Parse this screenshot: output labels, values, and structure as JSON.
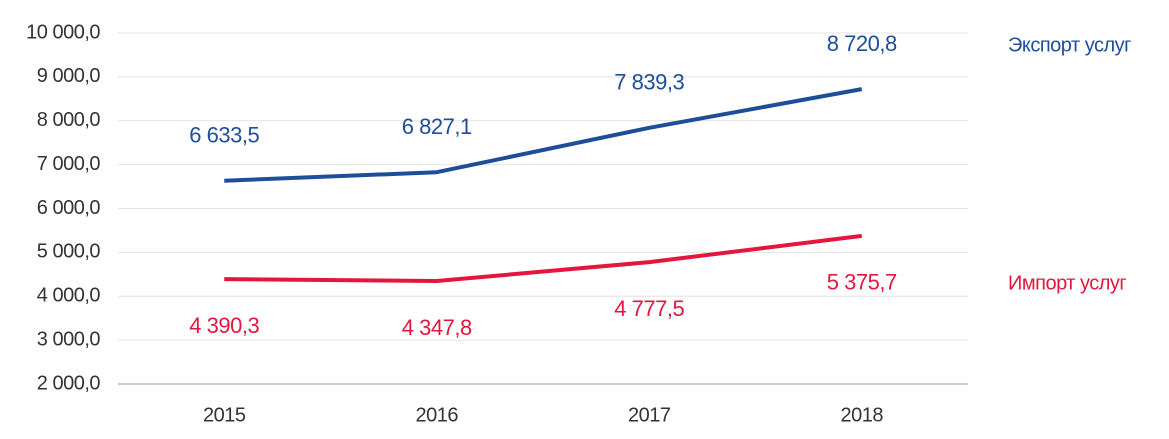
{
  "chart_data": {
    "type": "line",
    "categories": [
      "2015",
      "2016",
      "2017",
      "2018"
    ],
    "series": [
      {
        "name": "Экспорт услуг",
        "color": "#1f4e99",
        "values": [
          6633.5,
          6827.1,
          7839.3,
          8720.8
        ],
        "value_labels": [
          "6 633,5",
          "6 827,1",
          "7 839,3",
          "8 720,8"
        ]
      },
      {
        "name": "Импорт услуг",
        "color": "#e3173e",
        "values": [
          4390.3,
          4347.8,
          4777.5,
          5375.7
        ],
        "value_labels": [
          "4 390,3",
          "4 347,8",
          "4 777,5",
          "5 375,7"
        ]
      }
    ],
    "ylim": [
      2000,
      10000
    ],
    "yticks": [
      {
        "value": 2000,
        "label": "2 000,0"
      },
      {
        "value": 3000,
        "label": "3 000,0"
      },
      {
        "value": 4000,
        "label": "4 000,0"
      },
      {
        "value": 5000,
        "label": "5 000,0"
      },
      {
        "value": 6000,
        "label": "6 000,0"
      },
      {
        "value": 7000,
        "label": "7 000,0"
      },
      {
        "value": 8000,
        "label": "8 000,0"
      },
      {
        "value": 9000,
        "label": "9 000,0"
      },
      {
        "value": 10000,
        "label": "10 000,0"
      }
    ],
    "grid": true
  }
}
